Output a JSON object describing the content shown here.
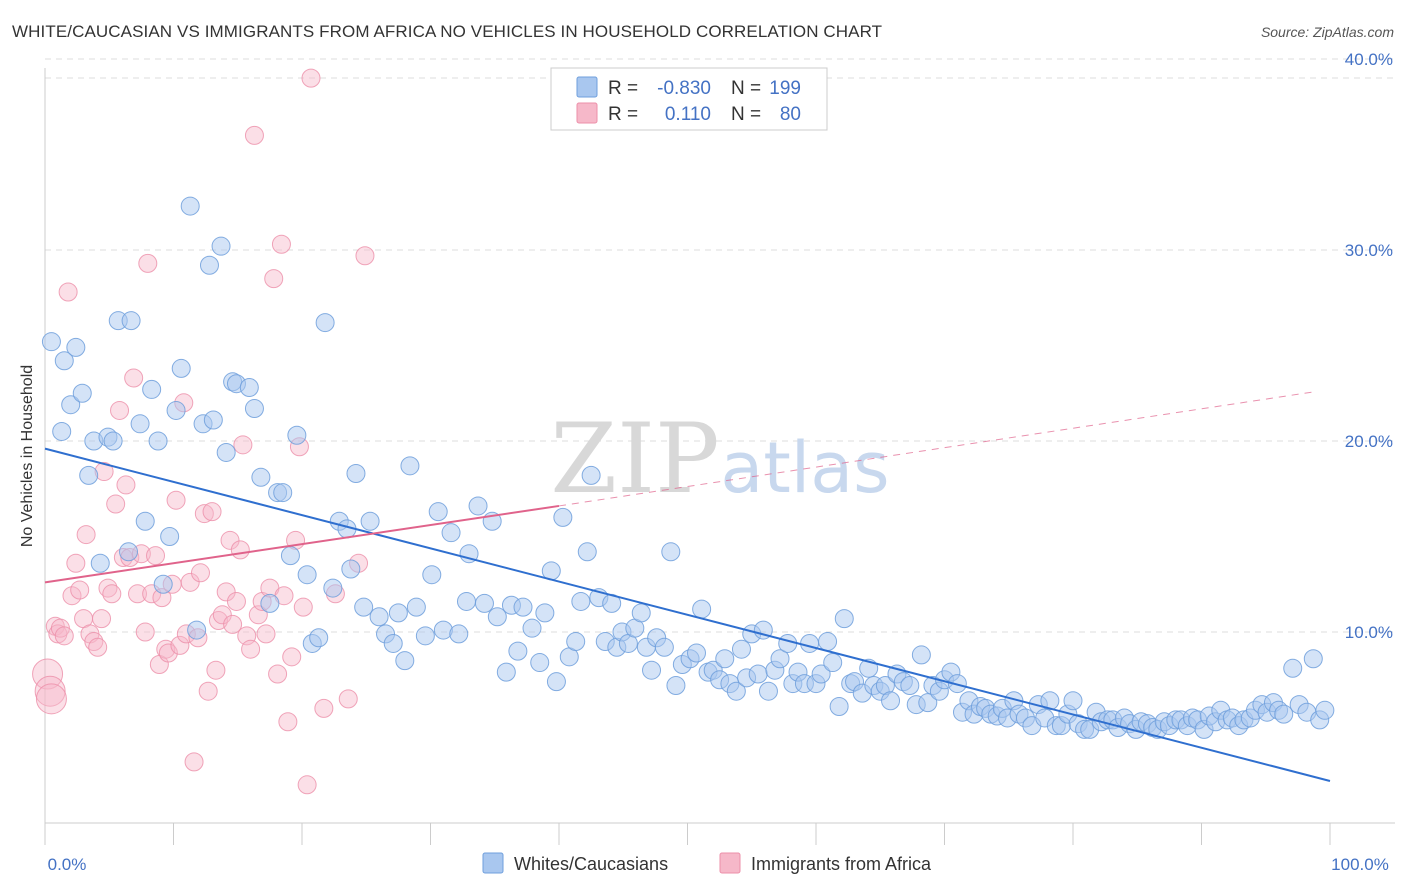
{
  "header": {
    "title": "WHITE/CAUCASIAN VS IMMIGRANTS FROM AFRICA NO VEHICLES IN HOUSEHOLD CORRELATION CHART",
    "source": "Source: ZipAtlas.com"
  },
  "watermark": {
    "zip": "ZIP",
    "atlas": "atlas"
  },
  "legend": {
    "items": [
      {
        "r_label": "R =",
        "r_value": "-0.830",
        "n_label": "N =",
        "n_value": "199"
      },
      {
        "r_label": "R =",
        "r_value": "0.110",
        "n_label": "N =",
        "n_value": "80"
      }
    ]
  },
  "bottom_legend": [
    "Whites/Caucasians",
    "Immigrants from Africa"
  ],
  "colors": {
    "blue_fill": "#a9c7ef",
    "blue_stroke": "#6f9fdc",
    "blue_line": "#2f6fcf",
    "pink_fill": "#f6b8c9",
    "pink_stroke": "#ec8fa9",
    "pink_line": "#e0638b",
    "tick_text": "#4472c4",
    "grid": "#dcdcdc"
  },
  "chart_data": {
    "type": "scatter",
    "title": "WHITE/CAUCASIAN VS IMMIGRANTS FROM AFRICA NO VEHICLES IN HOUSEHOLD CORRELATION CHART",
    "xlabel": "",
    "ylabel": "No Vehicles in Household",
    "xlim": [
      0,
      100
    ],
    "ylim": [
      0,
      42
    ],
    "x_tick_labels": [
      "0.0%",
      "100.0%"
    ],
    "y_ticks": [
      10,
      20,
      30,
      40
    ],
    "y_tick_labels": [
      "10.0%",
      "20.0%",
      "30.0%",
      "40.0%"
    ],
    "grid": "horizontal dashed",
    "legend_position": "top-center",
    "series": [
      {
        "name": "Whites/Caucasians",
        "r": -0.83,
        "n": 199,
        "trend": {
          "x": [
            0,
            100
          ],
          "y": [
            19.6,
            2.2
          ],
          "style": "solid"
        },
        "points": [
          [
            0.5,
            25.2
          ],
          [
            1.3,
            20.5
          ],
          [
            1.5,
            24.2
          ],
          [
            2.0,
            21.9
          ],
          [
            2.4,
            24.9
          ],
          [
            2.9,
            22.5
          ],
          [
            3.4,
            18.2
          ],
          [
            3.8,
            20.0
          ],
          [
            4.3,
            13.6
          ],
          [
            4.9,
            20.2
          ],
          [
            5.3,
            20.0
          ],
          [
            5.7,
            26.3
          ],
          [
            6.5,
            14.2
          ],
          [
            6.7,
            26.3
          ],
          [
            7.4,
            20.9
          ],
          [
            7.8,
            15.8
          ],
          [
            8.3,
            22.7
          ],
          [
            8.8,
            20.0
          ],
          [
            9.2,
            12.5
          ],
          [
            9.7,
            15.0
          ],
          [
            10.2,
            21.6
          ],
          [
            10.6,
            23.8
          ],
          [
            11.3,
            32.3
          ],
          [
            11.8,
            10.1
          ],
          [
            12.3,
            20.9
          ],
          [
            12.8,
            29.2
          ],
          [
            13.1,
            21.1
          ],
          [
            13.7,
            30.2
          ],
          [
            14.1,
            19.4
          ],
          [
            14.6,
            23.1
          ],
          [
            14.9,
            23.0
          ],
          [
            15.9,
            22.8
          ],
          [
            16.3,
            21.7
          ],
          [
            16.8,
            18.1
          ],
          [
            17.5,
            11.5
          ],
          [
            18.1,
            17.3
          ],
          [
            18.5,
            17.3
          ],
          [
            19.1,
            14.0
          ],
          [
            19.6,
            20.3
          ],
          [
            20.4,
            13.0
          ],
          [
            20.8,
            9.4
          ],
          [
            21.3,
            9.7
          ],
          [
            21.8,
            26.2
          ],
          [
            22.4,
            12.3
          ],
          [
            22.9,
            15.8
          ],
          [
            23.5,
            15.4
          ],
          [
            23.8,
            13.3
          ],
          [
            24.2,
            18.3
          ],
          [
            24.8,
            11.3
          ],
          [
            25.3,
            15.8
          ],
          [
            26.0,
            10.8
          ],
          [
            26.5,
            9.9
          ],
          [
            27.1,
            9.4
          ],
          [
            27.5,
            11.0
          ],
          [
            28.0,
            8.5
          ],
          [
            28.4,
            18.7
          ],
          [
            28.9,
            11.3
          ],
          [
            29.6,
            9.8
          ],
          [
            30.1,
            13.0
          ],
          [
            30.6,
            16.3
          ],
          [
            31.0,
            10.1
          ],
          [
            31.6,
            15.2
          ],
          [
            32.2,
            9.9
          ],
          [
            32.8,
            11.6
          ],
          [
            33.0,
            14.1
          ],
          [
            33.7,
            16.6
          ],
          [
            34.2,
            11.5
          ],
          [
            34.8,
            15.8
          ],
          [
            35.2,
            10.8
          ],
          [
            35.9,
            7.9
          ],
          [
            36.3,
            11.4
          ],
          [
            36.8,
            9.0
          ],
          [
            37.2,
            11.3
          ],
          [
            37.9,
            10.2
          ],
          [
            38.5,
            8.4
          ],
          [
            38.9,
            11.0
          ],
          [
            39.4,
            13.2
          ],
          [
            39.8,
            7.4
          ],
          [
            40.3,
            16.0
          ],
          [
            40.8,
            8.7
          ],
          [
            41.3,
            9.5
          ],
          [
            41.7,
            11.6
          ],
          [
            42.2,
            14.2
          ],
          [
            42.5,
            18.2
          ],
          [
            43.1,
            11.8
          ],
          [
            43.6,
            9.5
          ],
          [
            44.1,
            11.5
          ],
          [
            44.5,
            9.2
          ],
          [
            44.9,
            10.0
          ],
          [
            45.4,
            9.4
          ],
          [
            45.9,
            10.2
          ],
          [
            46.4,
            11.0
          ],
          [
            46.8,
            9.2
          ],
          [
            47.2,
            8.0
          ],
          [
            47.6,
            9.7
          ],
          [
            48.2,
            9.2
          ],
          [
            48.7,
            14.2
          ],
          [
            49.1,
            7.2
          ],
          [
            49.6,
            8.3
          ],
          [
            50.2,
            8.6
          ],
          [
            50.7,
            8.9
          ],
          [
            51.1,
            11.2
          ],
          [
            51.6,
            7.9
          ],
          [
            52.0,
            8.0
          ],
          [
            52.5,
            7.5
          ],
          [
            52.9,
            8.6
          ],
          [
            53.3,
            7.3
          ],
          [
            53.8,
            6.9
          ],
          [
            54.2,
            9.1
          ],
          [
            54.6,
            7.6
          ],
          [
            55.0,
            9.9
          ],
          [
            55.5,
            7.8
          ],
          [
            55.9,
            10.1
          ],
          [
            56.3,
            6.9
          ],
          [
            56.8,
            8.0
          ],
          [
            57.2,
            8.6
          ],
          [
            57.8,
            9.4
          ],
          [
            58.2,
            7.3
          ],
          [
            58.6,
            7.9
          ],
          [
            59.1,
            7.3
          ],
          [
            59.5,
            9.4
          ],
          [
            60.0,
            7.3
          ],
          [
            60.4,
            7.8
          ],
          [
            60.9,
            9.5
          ],
          [
            61.3,
            8.4
          ],
          [
            61.8,
            6.1
          ],
          [
            62.2,
            10.7
          ],
          [
            62.7,
            7.3
          ],
          [
            63.0,
            7.4
          ],
          [
            63.6,
            6.8
          ],
          [
            64.1,
            8.1
          ],
          [
            64.5,
            7.2
          ],
          [
            65.0,
            6.9
          ],
          [
            65.4,
            7.2
          ],
          [
            65.8,
            6.4
          ],
          [
            66.3,
            7.8
          ],
          [
            66.8,
            7.4
          ],
          [
            67.3,
            7.2
          ],
          [
            67.8,
            6.2
          ],
          [
            68.2,
            8.8
          ],
          [
            68.7,
            6.3
          ],
          [
            69.1,
            7.2
          ],
          [
            69.6,
            6.9
          ],
          [
            70.0,
            7.5
          ],
          [
            70.5,
            7.9
          ],
          [
            71.0,
            7.3
          ],
          [
            71.4,
            5.8
          ],
          [
            71.9,
            6.4
          ],
          [
            72.3,
            5.7
          ],
          [
            72.8,
            6.1
          ],
          [
            73.2,
            6.0
          ],
          [
            73.6,
            5.7
          ],
          [
            74.1,
            5.6
          ],
          [
            74.5,
            6.0
          ],
          [
            74.9,
            5.5
          ],
          [
            75.4,
            6.4
          ],
          [
            75.8,
            5.7
          ],
          [
            76.3,
            5.5
          ],
          [
            76.8,
            5.1
          ],
          [
            77.3,
            6.2
          ],
          [
            77.8,
            5.5
          ],
          [
            78.2,
            6.4
          ],
          [
            78.7,
            5.1
          ],
          [
            79.1,
            5.1
          ],
          [
            79.6,
            5.7
          ],
          [
            80.0,
            6.4
          ],
          [
            80.4,
            5.2
          ],
          [
            80.9,
            4.9
          ],
          [
            81.3,
            4.9
          ],
          [
            81.8,
            5.8
          ],
          [
            82.2,
            5.3
          ],
          [
            82.7,
            5.4
          ],
          [
            83.1,
            5.4
          ],
          [
            83.5,
            5.0
          ],
          [
            84.0,
            5.5
          ],
          [
            84.4,
            5.2
          ],
          [
            84.9,
            4.9
          ],
          [
            85.3,
            5.3
          ],
          [
            85.8,
            5.2
          ],
          [
            86.2,
            5.0
          ],
          [
            86.6,
            4.9
          ],
          [
            87.1,
            5.3
          ],
          [
            87.5,
            5.1
          ],
          [
            88.0,
            5.4
          ],
          [
            88.4,
            5.4
          ],
          [
            88.9,
            5.1
          ],
          [
            89.3,
            5.5
          ],
          [
            89.7,
            5.4
          ],
          [
            90.2,
            4.9
          ],
          [
            90.6,
            5.6
          ],
          [
            91.1,
            5.3
          ],
          [
            91.5,
            5.9
          ],
          [
            92.0,
            5.4
          ],
          [
            92.4,
            5.5
          ],
          [
            92.9,
            5.1
          ],
          [
            93.3,
            5.4
          ],
          [
            93.8,
            5.5
          ],
          [
            94.2,
            5.9
          ],
          [
            94.7,
            6.2
          ],
          [
            95.1,
            5.8
          ],
          [
            95.6,
            6.3
          ],
          [
            96.0,
            5.9
          ],
          [
            96.4,
            5.7
          ],
          [
            97.1,
            8.1
          ],
          [
            97.6,
            6.2
          ],
          [
            98.2,
            5.8
          ],
          [
            98.7,
            8.6
          ],
          [
            99.2,
            5.4
          ],
          [
            99.6,
            5.9
          ]
        ]
      },
      {
        "name": "Immigrants from Africa",
        "r": 0.11,
        "n": 80,
        "trend": {
          "x": [
            0,
            40
          ],
          "y": [
            12.6,
            16.6
          ],
          "x_dashed": [
            40,
            99
          ],
          "y_dashed": [
            16.6,
            22.6
          ],
          "style": "solid-then-dashed"
        },
        "points": [
          [
            0.2,
            7.8
          ],
          [
            0.4,
            6.9
          ],
          [
            0.5,
            6.5
          ],
          [
            0.8,
            10.3
          ],
          [
            1.0,
            9.9
          ],
          [
            1.2,
            10.2
          ],
          [
            1.5,
            9.8
          ],
          [
            1.8,
            27.8
          ],
          [
            2.1,
            11.9
          ],
          [
            2.4,
            13.6
          ],
          [
            2.7,
            12.2
          ],
          [
            3.0,
            10.7
          ],
          [
            3.2,
            15.1
          ],
          [
            3.5,
            9.9
          ],
          [
            3.8,
            9.5
          ],
          [
            4.1,
            9.2
          ],
          [
            4.4,
            10.7
          ],
          [
            4.6,
            18.4
          ],
          [
            4.9,
            12.3
          ],
          [
            5.2,
            12.0
          ],
          [
            5.5,
            16.7
          ],
          [
            5.8,
            21.6
          ],
          [
            6.1,
            13.9
          ],
          [
            6.3,
            17.7
          ],
          [
            6.6,
            13.9
          ],
          [
            6.9,
            23.3
          ],
          [
            7.2,
            12.0
          ],
          [
            7.5,
            14.1
          ],
          [
            7.8,
            10.0
          ],
          [
            8.0,
            29.3
          ],
          [
            8.3,
            12.0
          ],
          [
            8.6,
            14.0
          ],
          [
            8.9,
            8.3
          ],
          [
            9.1,
            11.8
          ],
          [
            9.4,
            9.1
          ],
          [
            9.6,
            8.9
          ],
          [
            9.9,
            12.5
          ],
          [
            10.2,
            16.9
          ],
          [
            10.5,
            9.3
          ],
          [
            10.8,
            22.0
          ],
          [
            11.0,
            9.9
          ],
          [
            11.3,
            12.6
          ],
          [
            11.6,
            3.2
          ],
          [
            11.9,
            9.7
          ],
          [
            12.1,
            13.1
          ],
          [
            12.4,
            16.2
          ],
          [
            12.7,
            6.9
          ],
          [
            13.0,
            16.3
          ],
          [
            13.3,
            8.0
          ],
          [
            13.5,
            10.6
          ],
          [
            13.8,
            10.9
          ],
          [
            14.1,
            12.1
          ],
          [
            14.4,
            14.8
          ],
          [
            14.6,
            10.4
          ],
          [
            14.9,
            11.6
          ],
          [
            15.2,
            14.3
          ],
          [
            15.4,
            19.8
          ],
          [
            15.7,
            9.8
          ],
          [
            16.0,
            9.1
          ],
          [
            16.3,
            36.0
          ],
          [
            16.6,
            10.9
          ],
          [
            16.9,
            11.6
          ],
          [
            17.2,
            9.9
          ],
          [
            17.5,
            12.3
          ],
          [
            17.8,
            28.5
          ],
          [
            18.1,
            7.8
          ],
          [
            18.4,
            30.3
          ],
          [
            18.6,
            11.9
          ],
          [
            18.9,
            5.3
          ],
          [
            19.2,
            8.7
          ],
          [
            19.5,
            14.8
          ],
          [
            19.8,
            19.7
          ],
          [
            20.1,
            11.3
          ],
          [
            20.4,
            2.0
          ],
          [
            20.7,
            39.0
          ],
          [
            21.7,
            6.0
          ],
          [
            22.6,
            12.0
          ],
          [
            23.6,
            6.5
          ],
          [
            24.4,
            13.6
          ],
          [
            24.9,
            29.7
          ]
        ]
      }
    ]
  }
}
